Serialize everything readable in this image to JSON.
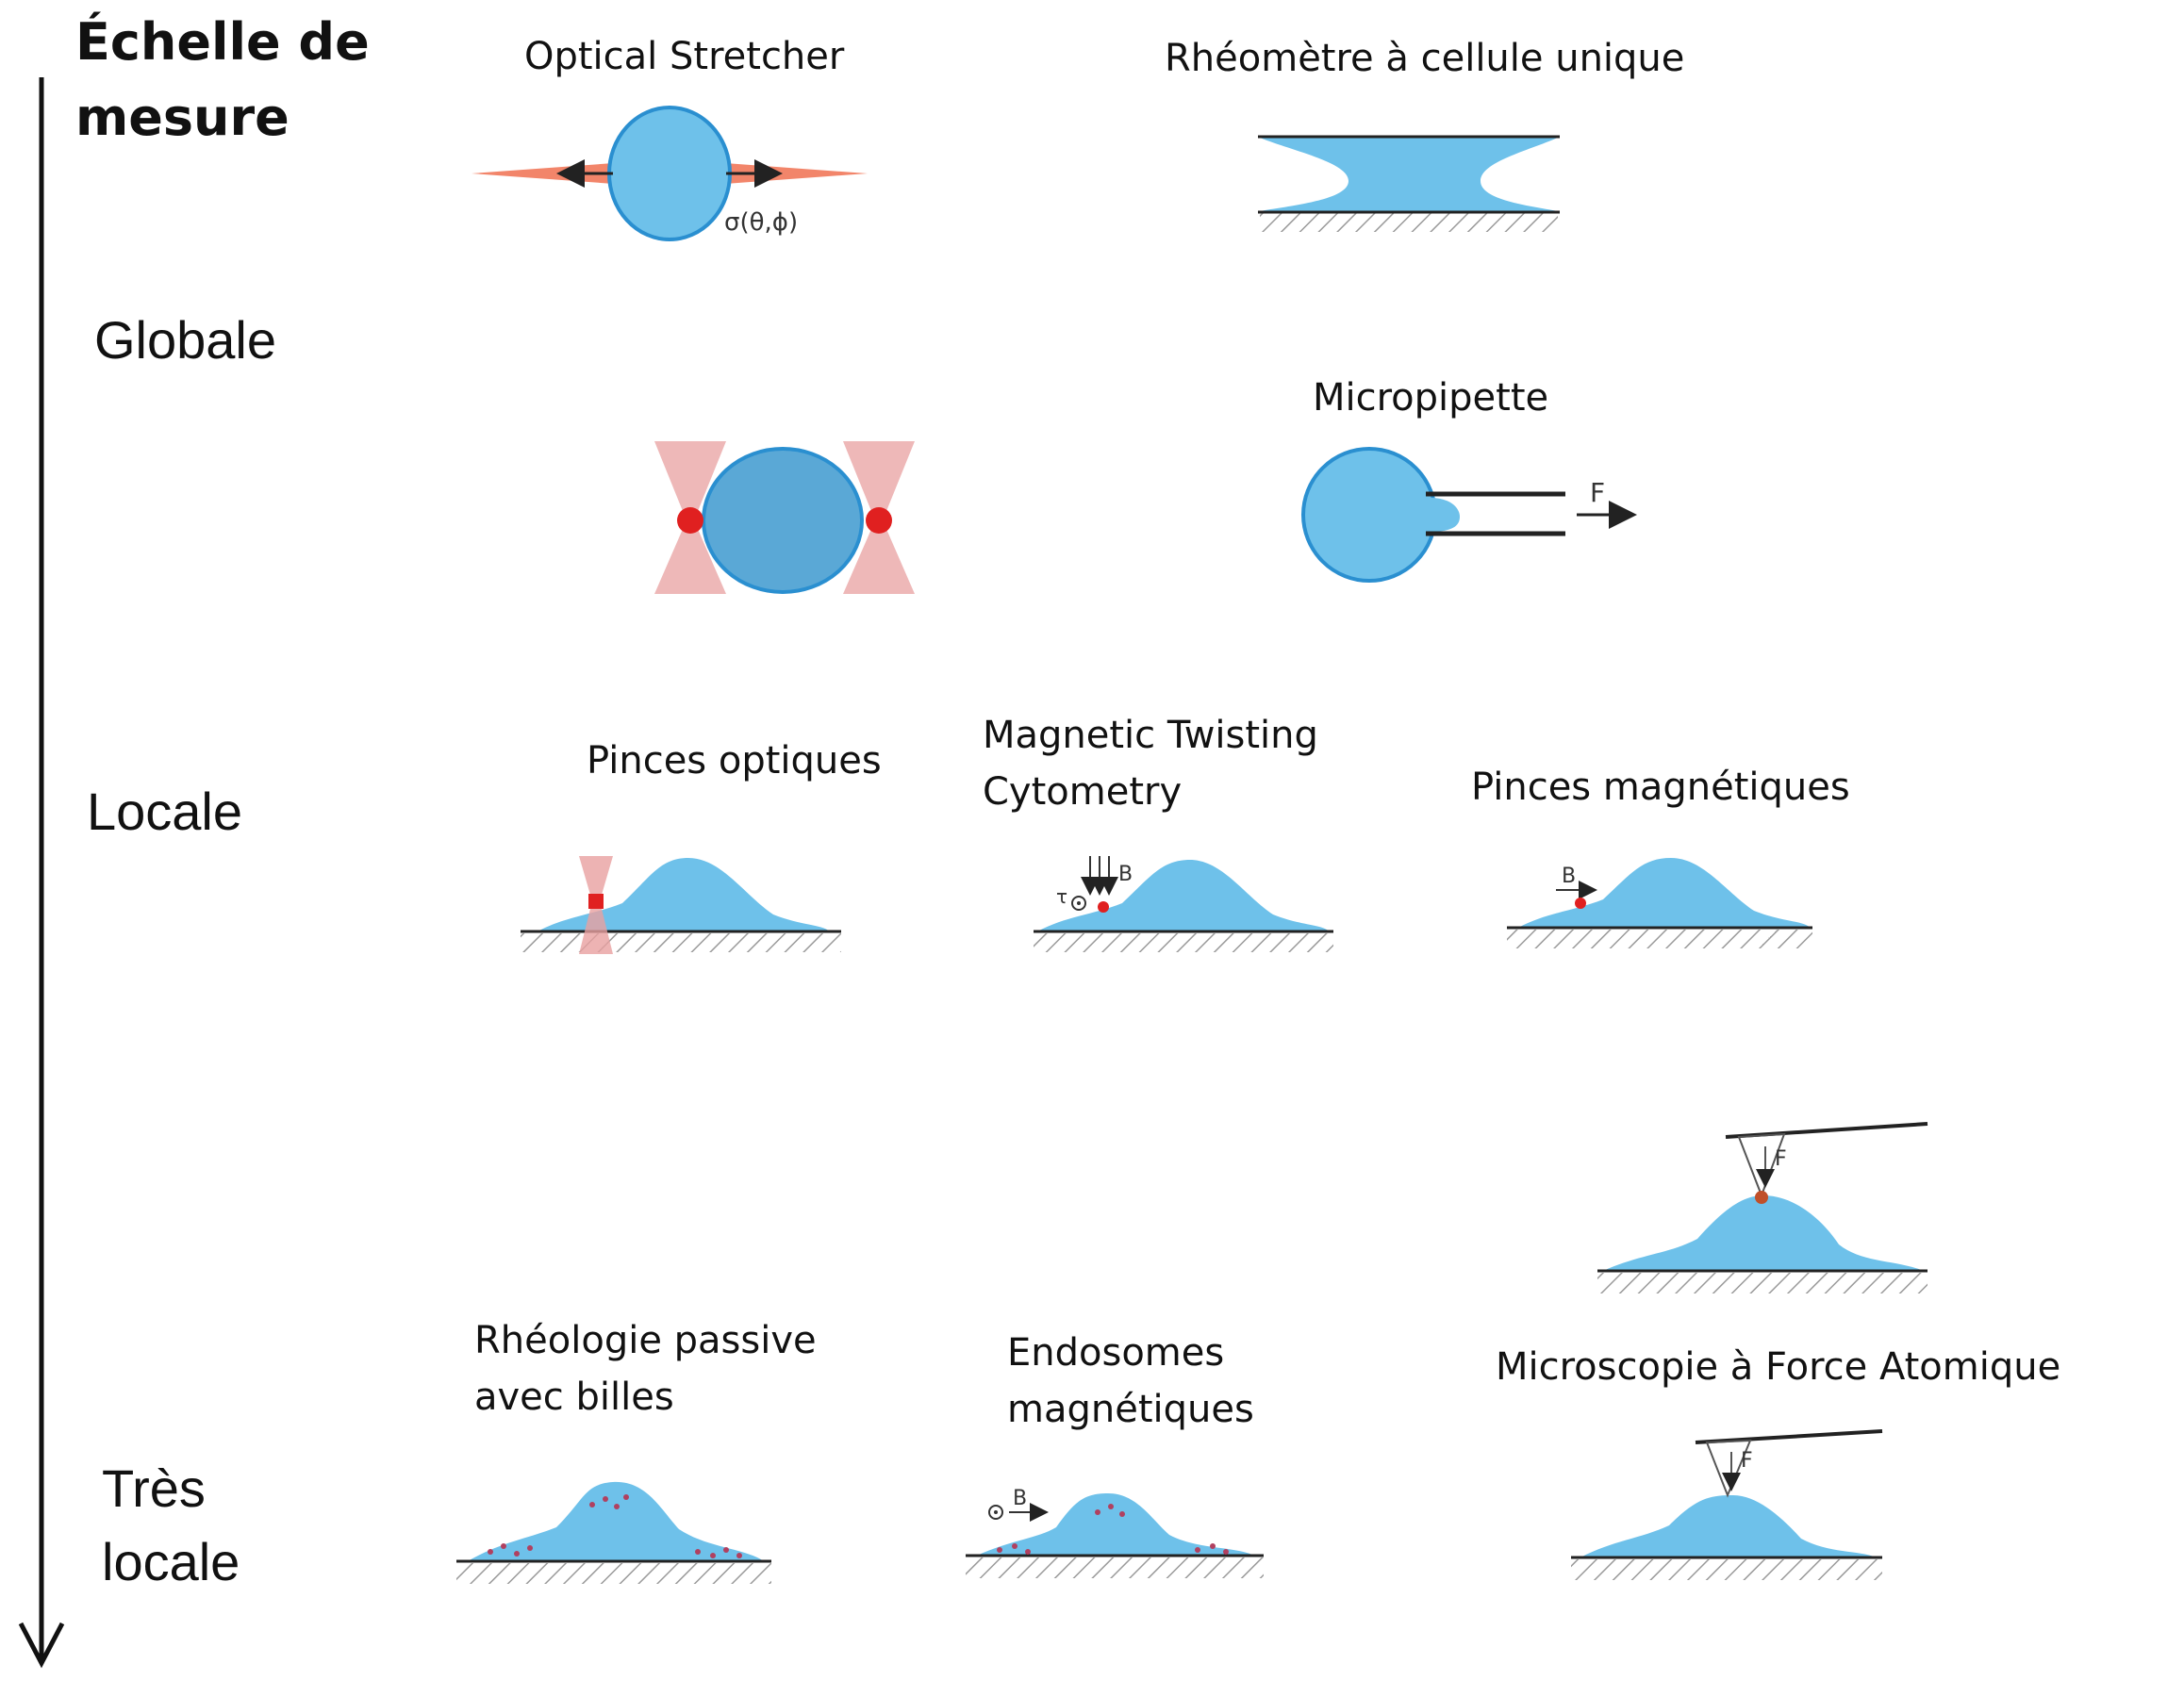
{
  "axis": {
    "title_line1": "Échelle de",
    "title_line2": "mesure",
    "levels": {
      "globale": "Globale",
      "locale": "Locale",
      "tres_locale_line1": "Très",
      "tres_locale_line2": "locale"
    }
  },
  "techniques": {
    "optical_stretcher": "Optical Stretcher",
    "optical_stretcher_stress": "σ(θ,ϕ)",
    "rheometre_line": "Rhéomètre à cellule unique",
    "micropipette": "Micropipette",
    "micropipette_force": "F",
    "pinces_optiques": "Pinces optiques",
    "mtc_line1": "Magnetic Twisting",
    "mtc_line2": "Cytometry",
    "mtc_field": "B",
    "mtc_torque": "τ",
    "pinces_magnetiques": "Pinces magnétiques",
    "pinces_magnetiques_field": "B",
    "rheologie_line1": "Rhéologie passive",
    "rheologie_line2": "avec billes",
    "endosomes_line1": "Endosomes",
    "endosomes_line2": "magnétiques",
    "endosomes_field": "B",
    "afm": "Microscopie à Force Atomique",
    "afm_force_top": "F",
    "afm_force_bottom": "F"
  },
  "colors": {
    "cell": "#6ec1ea",
    "cell_outline": "#2a8fd0",
    "trap": "#e8a0a0",
    "bead": "#e02020",
    "laser": "#f07050"
  }
}
